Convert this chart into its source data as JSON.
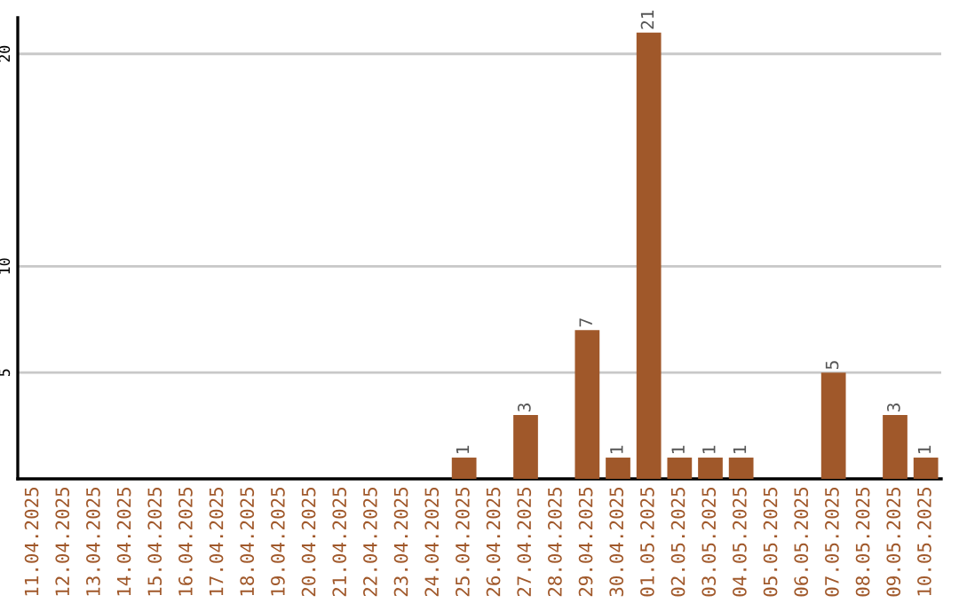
{
  "chart_data": {
    "type": "bar",
    "categories": [
      "11.04.2025",
      "12.04.2025",
      "13.04.2025",
      "14.04.2025",
      "15.04.2025",
      "16.04.2025",
      "17.04.2025",
      "18.04.2025",
      "19.04.2025",
      "20.04.2025",
      "21.04.2025",
      "22.04.2025",
      "23.04.2025",
      "24.04.2025",
      "25.04.2025",
      "26.04.2025",
      "27.04.2025",
      "28.04.2025",
      "29.04.2025",
      "30.04.2025",
      "01.05.2025",
      "02.05.2025",
      "03.05.2025",
      "04.05.2025",
      "05.05.2025",
      "06.05.2025",
      "07.05.2025",
      "08.05.2025",
      "09.05.2025",
      "10.05.2025"
    ],
    "values": [
      0,
      0,
      0,
      0,
      0,
      0,
      0,
      0,
      0,
      0,
      0,
      0,
      0,
      0,
      1,
      0,
      3,
      0,
      7,
      1,
      21,
      1,
      1,
      1,
      0,
      0,
      5,
      0,
      3,
      1
    ],
    "value_labels": [
      null,
      null,
      null,
      null,
      null,
      null,
      null,
      null,
      null,
      null,
      null,
      null,
      null,
      null,
      "1",
      null,
      "3",
      null,
      "7",
      "1",
      "21",
      "1",
      "1",
      "1",
      null,
      null,
      "5",
      null,
      "3",
      "1"
    ],
    "color": "#a0582a",
    "ylim": [
      0,
      21.7
    ],
    "yticks": [
      5,
      10,
      20
    ],
    "grid": "y"
  }
}
